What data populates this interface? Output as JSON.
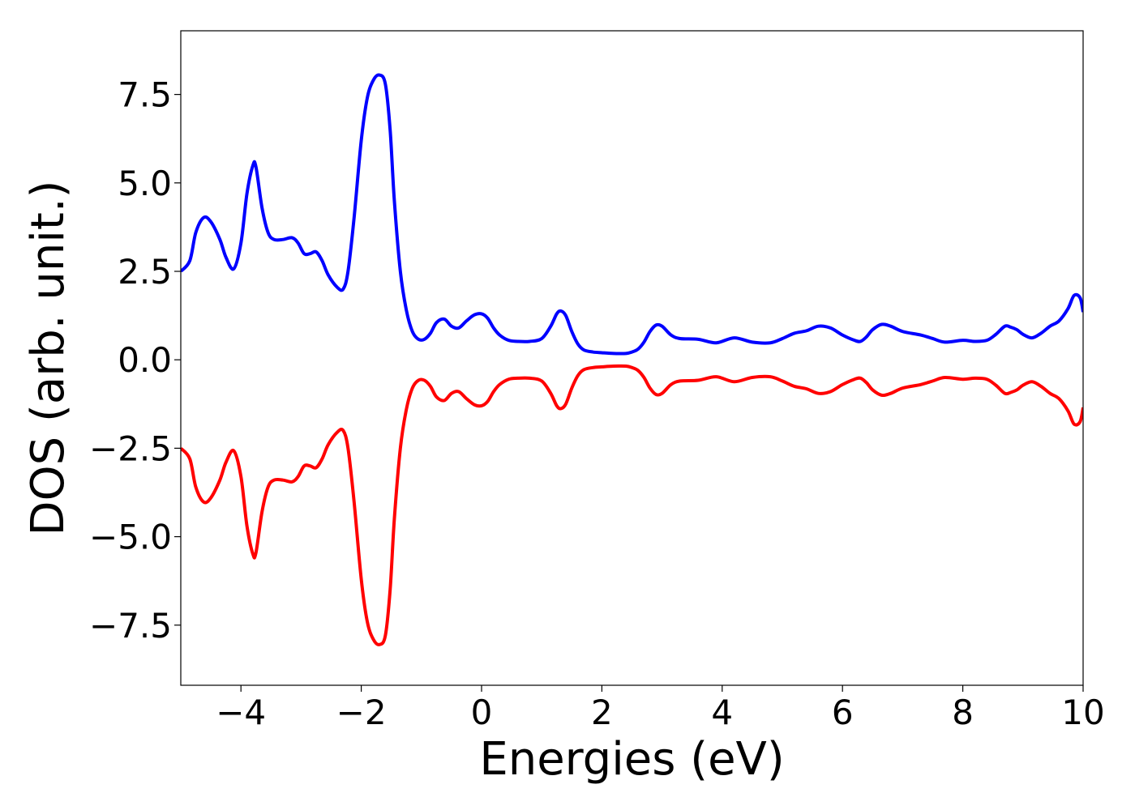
{
  "chart_data": {
    "type": "line",
    "xlabel": "Energies (eV)",
    "ylabel": "DOS (arb. unit.)",
    "xlim": [
      -5,
      10
    ],
    "ylim": [
      -9.2,
      9.3
    ],
    "xticks": [
      -4,
      -2,
      0,
      2,
      4,
      6,
      8,
      10
    ],
    "xtick_labels": [
      "−4",
      "−2",
      "0",
      "2",
      "4",
      "6",
      "8",
      "10"
    ],
    "yticks": [
      -7.5,
      -5.0,
      -2.5,
      0.0,
      2.5,
      5.0,
      7.5
    ],
    "ytick_labels": [
      "−7.5",
      "−5.0",
      "−2.5",
      "0.0",
      "2.5",
      "5.0",
      "7.5"
    ],
    "grid": false,
    "legend": "none",
    "series": [
      {
        "color": "#0000ff",
        "x": [
          -5.0,
          -4.85,
          -4.75,
          -4.62,
          -4.5,
          -4.35,
          -4.25,
          -4.12,
          -4.0,
          -3.9,
          -3.8,
          -3.75,
          -3.65,
          -3.55,
          -3.45,
          -3.3,
          -3.15,
          -3.05,
          -2.95,
          -2.85,
          -2.75,
          -2.65,
          -2.55,
          -2.4,
          -2.3,
          -2.22,
          -2.12,
          -2.0,
          -1.9,
          -1.8,
          -1.7,
          -1.6,
          -1.52,
          -1.45,
          -1.35,
          -1.25,
          -1.15,
          -1.05,
          -0.95,
          -0.85,
          -0.75,
          -0.62,
          -0.5,
          -0.38,
          -0.25,
          -0.12,
          0.0,
          0.1,
          0.2,
          0.3,
          0.45,
          0.6,
          0.8,
          1.0,
          1.15,
          1.25,
          1.32,
          1.4,
          1.5,
          1.6,
          1.7,
          1.85,
          2.0,
          2.2,
          2.4,
          2.5,
          2.6,
          2.7,
          2.8,
          2.9,
          3.0,
          3.15,
          3.3,
          3.6,
          3.9,
          4.2,
          4.5,
          4.8,
          5.0,
          5.2,
          5.4,
          5.6,
          5.8,
          6.0,
          6.2,
          6.3,
          6.4,
          6.5,
          6.65,
          6.8,
          7.0,
          7.3,
          7.5,
          7.7,
          8.0,
          8.2,
          8.4,
          8.55,
          8.7,
          8.8,
          8.9,
          9.0,
          9.15,
          9.3,
          9.45,
          9.6,
          9.75,
          9.85,
          9.95,
          10.0
        ],
        "y": [
          2.5,
          2.8,
          3.6,
          4.02,
          3.9,
          3.4,
          2.9,
          2.57,
          3.3,
          4.7,
          5.5,
          5.45,
          4.3,
          3.6,
          3.4,
          3.4,
          3.45,
          3.3,
          3.0,
          3.0,
          3.05,
          2.8,
          2.4,
          2.05,
          2.0,
          2.5,
          4.0,
          6.2,
          7.4,
          7.9,
          8.05,
          7.8,
          6.5,
          4.5,
          2.5,
          1.4,
          0.8,
          0.58,
          0.58,
          0.75,
          1.05,
          1.15,
          0.95,
          0.9,
          1.1,
          1.27,
          1.3,
          1.18,
          0.9,
          0.7,
          0.55,
          0.52,
          0.52,
          0.6,
          0.95,
          1.3,
          1.38,
          1.25,
          0.8,
          0.45,
          0.28,
          0.22,
          0.2,
          0.18,
          0.18,
          0.22,
          0.3,
          0.5,
          0.8,
          0.98,
          0.95,
          0.7,
          0.6,
          0.58,
          0.48,
          0.62,
          0.5,
          0.48,
          0.6,
          0.75,
          0.82,
          0.95,
          0.9,
          0.7,
          0.55,
          0.52,
          0.65,
          0.85,
          1.0,
          0.95,
          0.8,
          0.7,
          0.6,
          0.5,
          0.55,
          0.52,
          0.55,
          0.72,
          0.95,
          0.92,
          0.85,
          0.72,
          0.62,
          0.75,
          0.95,
          1.1,
          1.45,
          1.82,
          1.75,
          1.35
        ]
      },
      {
        "color": "#ff0000",
        "x": [
          -5.0,
          -4.85,
          -4.75,
          -4.62,
          -4.5,
          -4.35,
          -4.25,
          -4.12,
          -4.0,
          -3.9,
          -3.8,
          -3.75,
          -3.65,
          -3.55,
          -3.45,
          -3.3,
          -3.15,
          -3.05,
          -2.95,
          -2.85,
          -2.75,
          -2.65,
          -2.55,
          -2.4,
          -2.3,
          -2.22,
          -2.12,
          -2.0,
          -1.9,
          -1.8,
          -1.7,
          -1.6,
          -1.52,
          -1.45,
          -1.35,
          -1.25,
          -1.15,
          -1.05,
          -0.95,
          -0.85,
          -0.75,
          -0.62,
          -0.5,
          -0.38,
          -0.25,
          -0.12,
          0.0,
          0.1,
          0.2,
          0.3,
          0.45,
          0.6,
          0.8,
          1.0,
          1.15,
          1.25,
          1.32,
          1.4,
          1.5,
          1.6,
          1.7,
          1.85,
          2.0,
          2.2,
          2.4,
          2.5,
          2.6,
          2.7,
          2.8,
          2.9,
          3.0,
          3.15,
          3.3,
          3.6,
          3.9,
          4.2,
          4.5,
          4.8,
          5.0,
          5.2,
          5.4,
          5.6,
          5.8,
          6.0,
          6.2,
          6.3,
          6.4,
          6.5,
          6.65,
          6.8,
          7.0,
          7.3,
          7.5,
          7.7,
          8.0,
          8.2,
          8.4,
          8.55,
          8.7,
          8.8,
          8.9,
          9.0,
          9.15,
          9.3,
          9.45,
          9.6,
          9.75,
          9.85,
          9.95,
          10.0
        ],
        "y": [
          -2.5,
          -2.8,
          -3.6,
          -4.02,
          -3.9,
          -3.4,
          -2.9,
          -2.57,
          -3.3,
          -4.7,
          -5.5,
          -5.45,
          -4.3,
          -3.6,
          -3.4,
          -3.4,
          -3.45,
          -3.3,
          -3.0,
          -3.0,
          -3.05,
          -2.8,
          -2.4,
          -2.05,
          -2.0,
          -2.5,
          -4.0,
          -6.2,
          -7.4,
          -7.9,
          -8.05,
          -7.8,
          -6.5,
          -4.5,
          -2.5,
          -1.4,
          -0.8,
          -0.58,
          -0.58,
          -0.75,
          -1.05,
          -1.15,
          -0.95,
          -0.9,
          -1.1,
          -1.27,
          -1.3,
          -1.18,
          -0.9,
          -0.7,
          -0.55,
          -0.52,
          -0.52,
          -0.6,
          -0.95,
          -1.3,
          -1.38,
          -1.25,
          -0.8,
          -0.45,
          -0.28,
          -0.22,
          -0.2,
          -0.18,
          -0.18,
          -0.22,
          -0.3,
          -0.5,
          -0.8,
          -0.98,
          -0.95,
          -0.7,
          -0.6,
          -0.58,
          -0.48,
          -0.62,
          -0.5,
          -0.48,
          -0.6,
          -0.75,
          -0.82,
          -0.95,
          -0.9,
          -0.7,
          -0.55,
          -0.52,
          -0.65,
          -0.85,
          -1.0,
          -0.95,
          -0.8,
          -0.7,
          -0.6,
          -0.5,
          -0.55,
          -0.52,
          -0.55,
          -0.72,
          -0.95,
          -0.92,
          -0.85,
          -0.72,
          -0.62,
          -0.75,
          -0.95,
          -1.1,
          -1.45,
          -1.82,
          -1.75,
          -1.35
        ]
      }
    ]
  }
}
